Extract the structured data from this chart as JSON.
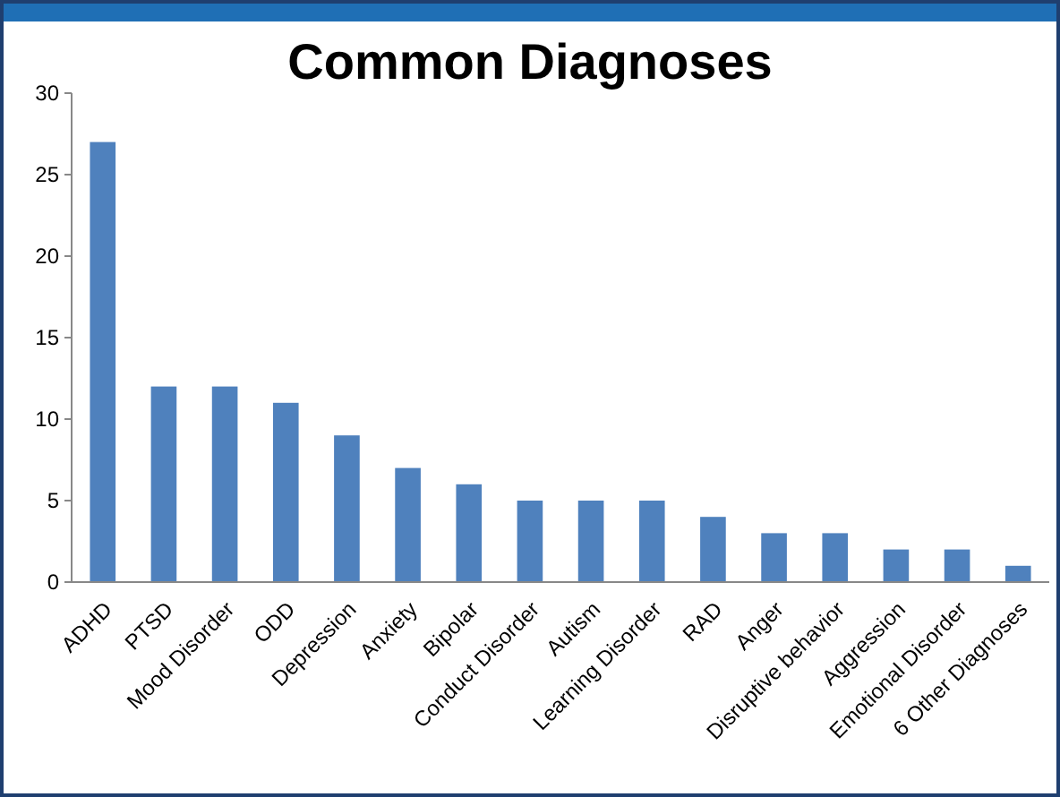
{
  "chart_data": {
    "type": "bar",
    "title": "Common Diagnoses",
    "categories": [
      "ADHD",
      "PTSD",
      "Mood Disorder",
      "ODD",
      "Depression",
      "Anxiety",
      "Bipolar",
      "Conduct Disorder",
      "Autism",
      "Learning Disorder",
      "RAD",
      "Anger",
      "Disruptive behavior",
      "Aggression",
      "Emotional Disorder",
      "6 Other Diagnoses"
    ],
    "values": [
      27,
      12,
      12,
      11,
      9,
      7,
      6,
      5,
      5,
      5,
      4,
      3,
      3,
      2,
      2,
      1
    ],
    "color": "#4f81bd",
    "ylim": [
      0,
      30
    ],
    "yticks": [
      0,
      5,
      10,
      15,
      20,
      25,
      30
    ],
    "grid": false
  }
}
